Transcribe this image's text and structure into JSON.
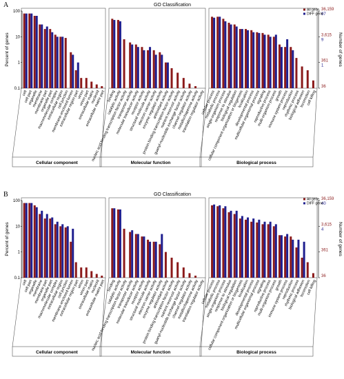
{
  "chart_data": [
    {
      "type": "bar",
      "label": "A",
      "title": "GO Classification",
      "ylabel": "Percent of genes",
      "y2label": "Number of genes",
      "log": true,
      "ylim": [
        0.1,
        100
      ],
      "yticks": [
        0.1,
        1,
        10,
        100
      ],
      "y2ticks": [
        {
          "value": 100,
          "label": "36,159"
        },
        {
          "value": 10,
          "label": "3,615"
        },
        {
          "value": 1,
          "label": "361"
        },
        {
          "value": 0.1,
          "label": "36"
        }
      ],
      "y2ticks_diff": [
        {
          "value": 100,
          "label": "97"
        },
        {
          "value": 10,
          "label": "9"
        },
        {
          "value": 1,
          "label": "1"
        }
      ],
      "series": [
        {
          "name": "All gene",
          "color": "#8b1a1a"
        },
        {
          "name": "DIFF gene",
          "color": "#1f1f8f"
        }
      ],
      "groups": [
        {
          "name": "Cellular component",
          "categories": [
            "cell",
            "cell part",
            "organelle",
            "membrane",
            "membrane part",
            "organelle part",
            "macromolecular complex",
            "extracellular region",
            "cell junction",
            "membrane-enclosed lumen",
            "extracellular region part",
            "virion",
            "virion part",
            "extracellular matrix",
            "nucleoid",
            "extracellular matrix part"
          ],
          "values": [
            [
              80,
              80,
              65,
              30,
              20,
              20,
              12,
              10,
              9,
              2.5,
              0.5,
              0.25,
              0.25,
              0.18,
              0.14,
              0.12
            ],
            [
              80,
              80,
              65,
              30,
              25,
              15,
              10,
              10,
              null,
              2,
              1,
              null,
              null,
              null,
              null,
              null
            ]
          ]
        },
        {
          "name": "Molecular function",
          "categories": [
            "binding",
            "catalytic activity",
            "nucleic acid binding transcription factor activity",
            "transporter activity",
            "molecular transducer activity",
            "receptor activity",
            "structural molecule activity",
            "electron carrier activity",
            "enzyme regulator activity",
            "antioxidant activity",
            "protein binding transcription factor activity",
            "nutrient reservoir activity",
            "guanyl-nucleotide exchange factor activity",
            "channel regulator activity",
            "metallochaperone activity",
            "translation regulator activity"
          ],
          "values": [
            [
              50,
              45,
              8,
              6,
              5,
              4,
              3,
              3,
              2.5,
              1,
              0.6,
              0.4,
              0.25,
              0.15,
              0.12,
              0.1
            ],
            [
              45,
              40,
              null,
              5,
              4,
              3,
              4,
              2,
              2,
              1,
              null,
              null,
              null,
              null,
              null,
              null
            ]
          ]
        },
        {
          "name": "Biological process",
          "categories": [
            "cellular process",
            "metabolic process",
            "single-organism process",
            "response to stimulus",
            "biological regulation",
            "cellular component organization or biogenesis",
            "localization",
            "developmental process",
            "multicellular organismal process",
            "signaling",
            "reproductive process",
            "multi-organism process",
            "growth",
            "immune system process",
            "reproduction",
            "rhythmic process",
            "biological adhesion",
            "locomotion",
            "cell killing"
          ],
          "values": [
            [
              60,
              60,
              50,
              35,
              30,
              20,
              20,
              18,
              15,
              14,
              12,
              10,
              5,
              4,
              4,
              1.5,
              0.7,
              0.5,
              0.2
            ],
            [
              55,
              60,
              40,
              30,
              25,
              20,
              18,
              15,
              14,
              12,
              10,
              12,
              4,
              8,
              3,
              null,
              null,
              null,
              null
            ]
          ]
        }
      ]
    },
    {
      "type": "bar",
      "label": "B",
      "title": "GO Classification",
      "ylabel": "Percent of genes",
      "y2label": "Number of genes",
      "log": true,
      "ylim": [
        0.1,
        100
      ],
      "yticks": [
        0.1,
        1,
        10,
        100
      ],
      "y2ticks": [
        {
          "value": 100,
          "label": "36,159"
        },
        {
          "value": 10,
          "label": "3,615"
        },
        {
          "value": 1,
          "label": "361"
        },
        {
          "value": 0.1,
          "label": "36"
        }
      ],
      "y2ticks_diff": [
        {
          "value": 100,
          "label": "40"
        },
        {
          "value": 10,
          "label": "4"
        }
      ],
      "series": [
        {
          "name": "All gene",
          "color": "#8b1a1a"
        },
        {
          "name": "DIFF gene",
          "color": "#1f1f8f"
        }
      ],
      "groups": [
        {
          "name": "Cellular component",
          "categories": [
            "cell",
            "cell part",
            "organelle",
            "membrane",
            "membrane part",
            "organelle part",
            "macromolecular complex",
            "extracellular region",
            "cell junction",
            "membrane-enclosed lumen",
            "extracellular region part",
            "virion",
            "virion part",
            "extracellular matrix",
            "nucleoid",
            "extracellular matrix part"
          ],
          "values": [
            [
              80,
              80,
              65,
              30,
              20,
              20,
              12,
              10,
              9,
              2.5,
              0.4,
              0.25,
              0.25,
              0.18,
              0.14,
              0.12
            ],
            [
              80,
              80,
              55,
              40,
              30,
              22,
              15,
              12,
              10,
              8,
              null,
              null,
              null,
              null,
              null,
              null
            ]
          ]
        },
        {
          "name": "Molecular function",
          "categories": [
            "binding",
            "catalytic activity",
            "nucleic acid binding transcription factor activity",
            "transporter activity",
            "molecular transducer activity",
            "receptor activity",
            "structural molecule activity",
            "electron carrier activity",
            "enzyme regulator activity",
            "antioxidant activity",
            "protein binding transcription factor activity",
            "nutrient reservoir activity",
            "guanyl-nucleotide exchange factor activity",
            "channel regulator activity",
            "metallochaperone activity",
            "translation regulator activity"
          ],
          "values": [
            [
              50,
              45,
              8,
              6,
              5,
              4,
              3,
              2.5,
              2,
              1,
              0.6,
              0.4,
              0.25,
              0.15,
              0.12,
              0.1
            ],
            [
              50,
              45,
              null,
              7,
              5,
              4,
              2.5,
              2.5,
              5,
              null,
              null,
              null,
              null,
              null,
              null,
              null
            ]
          ]
        },
        {
          "name": "Biological process",
          "categories": [
            "cellular process",
            "metabolic process",
            "single-organism process",
            "response to stimulus",
            "biological regulation",
            "cellular component organization or biogenesis",
            "localization",
            "developmental process",
            "multicellular organismal process",
            "signaling",
            "reproductive process",
            "multi-organism process",
            "growth",
            "immune system process",
            "reproduction",
            "rhythmic process",
            "biological adhesion",
            "locomotion",
            "cell killing"
          ],
          "values": [
            [
              65,
              60,
              50,
              35,
              30,
              20,
              18,
              15,
              14,
              12,
              12,
              10,
              4.5,
              4,
              4,
              1.5,
              0.6,
              0.4,
              0.15
            ],
            [
              70,
              65,
              60,
              40,
              40,
              25,
              22,
              20,
              18,
              15,
              15,
              12,
              4.5,
              5,
              3,
              3,
              2.5,
              null,
              null
            ]
          ]
        }
      ]
    }
  ]
}
